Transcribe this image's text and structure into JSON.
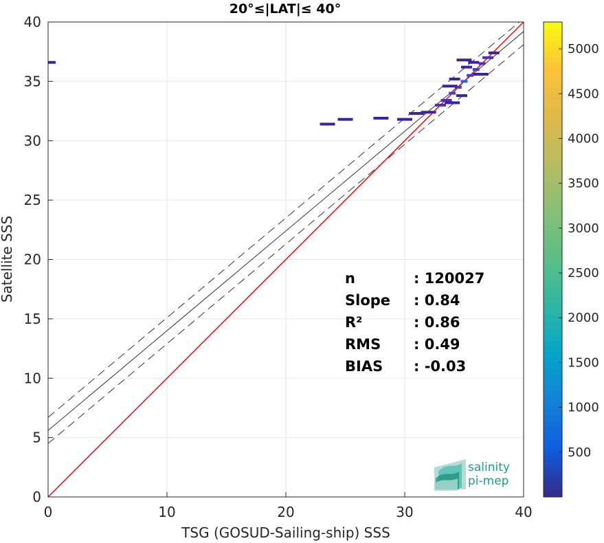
{
  "chart_data": {
    "type": "scatter",
    "title": "20°≤|LAT|≤ 40°",
    "xlabel": "TSG (GOSUD-Sailing-ship) SSS",
    "ylabel": "Satellite SSS",
    "xlim": [
      0,
      40
    ],
    "ylim": [
      0,
      40
    ],
    "x_ticks": [
      "0",
      "10",
      "20",
      "30",
      "40"
    ],
    "y_ticks": [
      "0",
      "5",
      "10",
      "15",
      "20",
      "25",
      "30",
      "35",
      "40"
    ],
    "grid": true,
    "colorbar": {
      "range": [
        0,
        5300
      ],
      "ticks": [
        "500",
        "1000",
        "1500",
        "2000",
        "2500",
        "3000",
        "3500",
        "4000",
        "4500",
        "5000"
      ],
      "colormap": "parula"
    },
    "identity_line": {
      "slope": 1,
      "intercept": 0,
      "color": "#ff0000"
    },
    "fit_line": {
      "slope": 0.84,
      "intercept": 5.6,
      "color": "#000000"
    },
    "fit_band_offsets": [
      -1.1,
      1.1
    ],
    "density_points": [
      {
        "x": 33.0,
        "y": 33.0,
        "c": 300
      },
      {
        "x": 33.5,
        "y": 33.4,
        "c": 500
      },
      {
        "x": 34.0,
        "y": 34.0,
        "c": 900
      },
      {
        "x": 34.5,
        "y": 34.5,
        "c": 1200
      },
      {
        "x": 35.0,
        "y": 35.0,
        "c": 1500
      },
      {
        "x": 35.5,
        "y": 35.5,
        "c": 1200
      },
      {
        "x": 36.0,
        "y": 36.0,
        "c": 900
      },
      {
        "x": 36.5,
        "y": 36.5,
        "c": 600
      },
      {
        "x": 37.0,
        "y": 37.0,
        "c": 400
      },
      {
        "x": 37.5,
        "y": 37.4,
        "c": 200
      },
      {
        "x": 34.2,
        "y": 35.2,
        "c": 150
      },
      {
        "x": 35.2,
        "y": 36.2,
        "c": 150
      },
      {
        "x": 35.8,
        "y": 36.6,
        "c": 120
      },
      {
        "x": 34.8,
        "y": 33.8,
        "c": 120
      },
      {
        "x": 33.8,
        "y": 34.6,
        "c": 100
      },
      {
        "x": 36.4,
        "y": 35.6,
        "c": 100
      },
      {
        "x": 35.0,
        "y": 36.8,
        "c": 80
      },
      {
        "x": 34.0,
        "y": 33.2,
        "c": 80
      },
      {
        "x": 32.0,
        "y": 32.4,
        "c": 40
      },
      {
        "x": 31.0,
        "y": 32.3,
        "c": 30
      },
      {
        "x": 28.0,
        "y": 31.9,
        "c": 20
      },
      {
        "x": 25.0,
        "y": 31.8,
        "c": 20
      },
      {
        "x": 23.5,
        "y": 31.4,
        "c": 15
      },
      {
        "x": 30.0,
        "y": 31.8,
        "c": 20
      },
      {
        "x": 0.0,
        "y": 36.6,
        "c": 5
      }
    ],
    "stats": [
      {
        "label": "n",
        "value": ": 120027"
      },
      {
        "label": "Slope",
        "value": ": 0.84"
      },
      {
        "label": "R²",
        "value": ": 0.86"
      },
      {
        "label": "RMS",
        "value": ": 0.49"
      },
      {
        "label": "BIAS",
        "value": ": -0.03"
      }
    ]
  },
  "logo": {
    "line1": "salinity",
    "line2": "pi-mep"
  }
}
